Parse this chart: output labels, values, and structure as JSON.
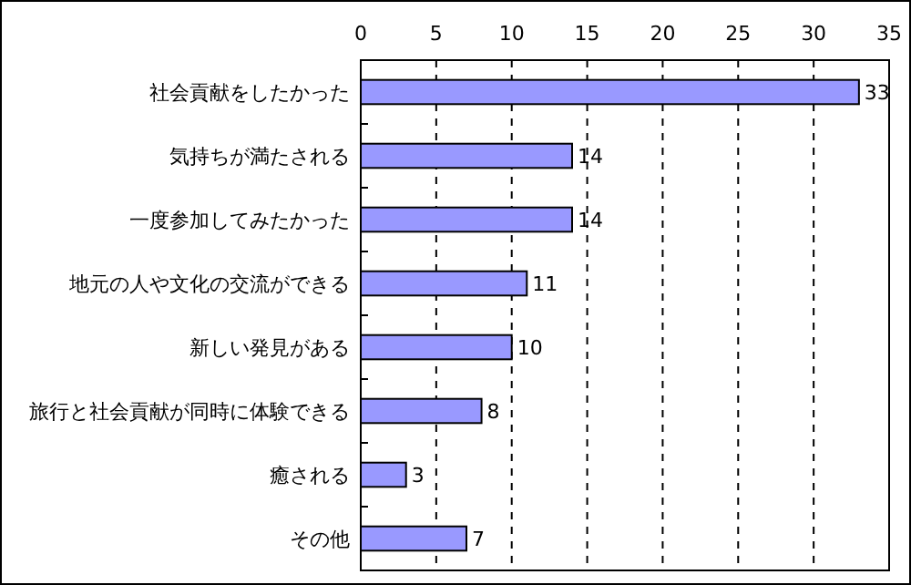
{
  "chart_data": {
    "type": "bar",
    "orientation": "horizontal",
    "categories": [
      "社会貢献をしたかった",
      "気持ちが満たされる",
      "一度参加してみたかった",
      "地元の人や文化の交流ができる",
      "新しい発見がある",
      "旅行と社会貢献が同時に体験できる",
      "癒される",
      "その他"
    ],
    "values": [
      33,
      14,
      14,
      11,
      10,
      8,
      3,
      7
    ],
    "color": "#9999ff",
    "xlim": [
      0,
      35
    ],
    "xticks": [
      0,
      5,
      10,
      15,
      20,
      25,
      30,
      35
    ],
    "grid": "x",
    "data_labels": true
  }
}
